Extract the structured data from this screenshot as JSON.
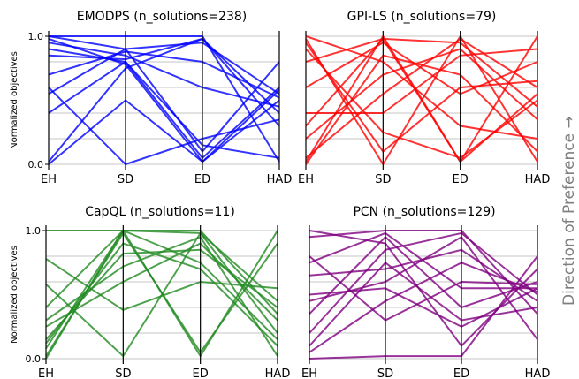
{
  "side_label": "Direction of Preference →",
  "axes_labels": [
    "EH",
    "SD",
    "ED",
    "HAD"
  ],
  "y_label": "Normalized objectives",
  "y_ticks": [
    "0.0",
    "1.0"
  ],
  "chart_data": [
    {
      "type": "parallel_coordinates",
      "title": "EMODPS (n_solutions=238)",
      "color": "#0000ff",
      "dimensions": [
        "EH",
        "SD",
        "ED",
        "HAD"
      ],
      "ylabel": "Normalized objectives",
      "ylim": [
        0,
        1
      ],
      "grid": "horizontal",
      "n_solutions": 238,
      "lines": [
        [
          1.0,
          1.0,
          1.0,
          0.02
        ],
        [
          0.02,
          0.75,
          0.98,
          0.4
        ],
        [
          0.98,
          0.78,
          0.02,
          0.5
        ],
        [
          0.6,
          0.0,
          0.2,
          0.35
        ],
        [
          0.55,
          0.9,
          0.95,
          0.55
        ],
        [
          0.95,
          0.85,
          0.6,
          0.45
        ],
        [
          0.4,
          0.8,
          0.05,
          0.6
        ],
        [
          1.0,
          0.9,
          0.1,
          0.8
        ],
        [
          0.85,
          0.82,
          0.98,
          0.3
        ],
        [
          0.0,
          0.5,
          0.02,
          0.58
        ],
        [
          0.7,
          0.88,
          0.8,
          0.52
        ],
        [
          0.9,
          0.8,
          0.15,
          0.05
        ]
      ]
    },
    {
      "type": "parallel_coordinates",
      "title": "GPI-LS (n_solutions=79)",
      "color": "#ff0000",
      "dimensions": [
        "EH",
        "SD",
        "ED",
        "HAD"
      ],
      "ylim": [
        0,
        1
      ],
      "grid": "horizontal",
      "n_solutions": 79,
      "lines": [
        [
          0.02,
          1.0,
          0.02,
          1.0
        ],
        [
          0.98,
          0.0,
          1.0,
          0.02
        ],
        [
          0.2,
          0.7,
          0.9,
          0.35
        ],
        [
          0.9,
          0.25,
          0.05,
          0.5
        ],
        [
          0.6,
          0.95,
          0.55,
          0.8
        ],
        [
          0.05,
          0.55,
          0.98,
          0.6
        ],
        [
          1.0,
          0.8,
          0.3,
          0.2
        ],
        [
          0.4,
          0.4,
          0.85,
          0.9
        ],
        [
          0.8,
          0.98,
          0.02,
          0.55
        ],
        [
          0.0,
          0.85,
          0.7,
          0.1
        ],
        [
          0.95,
          0.1,
          0.6,
          0.65
        ],
        [
          0.3,
          0.98,
          0.95,
          0.45
        ]
      ]
    },
    {
      "type": "parallel_coordinates",
      "title": "CapQL (n_solutions=11)",
      "color": "#228b22",
      "dimensions": [
        "EH",
        "SD",
        "ED",
        "HAD"
      ],
      "ylabel": "Normalized objectives",
      "ylim": [
        0,
        1
      ],
      "grid": "horizontal",
      "n_solutions": 11,
      "lines": [
        [
          1.0,
          1.0,
          1.0,
          0.35
        ],
        [
          0.0,
          1.0,
          0.02,
          1.0
        ],
        [
          0.58,
          0.02,
          0.98,
          0.45
        ],
        [
          0.12,
          0.9,
          0.7,
          0.1
        ],
        [
          0.3,
          0.72,
          0.95,
          0.02
        ],
        [
          0.78,
          0.38,
          0.6,
          0.55
        ],
        [
          0.08,
          1.0,
          0.98,
          0.2
        ],
        [
          0.15,
          0.82,
          0.85,
          0.4
        ],
        [
          0.02,
          0.98,
          0.05,
          0.9
        ],
        [
          0.4,
          1.0,
          0.75,
          0.15
        ],
        [
          0.25,
          0.6,
          0.9,
          0.3
        ]
      ]
    },
    {
      "type": "parallel_coordinates",
      "title": "PCN (n_solutions=129)",
      "color": "#800080",
      "dimensions": [
        "EH",
        "SD",
        "ED",
        "HAD"
      ],
      "ylim": [
        0,
        1
      ],
      "grid": "horizontal",
      "n_solutions": 129,
      "lines": [
        [
          0.0,
          0.02,
          0.02,
          0.8
        ],
        [
          0.95,
          1.0,
          1.0,
          0.35
        ],
        [
          0.5,
          0.55,
          0.25,
          0.55
        ],
        [
          0.2,
          0.85,
          0.98,
          0.5
        ],
        [
          0.8,
          0.3,
          0.6,
          0.58
        ],
        [
          0.35,
          0.95,
          0.4,
          0.6
        ],
        [
          0.65,
          0.7,
          0.85,
          0.45
        ],
        [
          0.05,
          0.45,
          0.75,
          0.52
        ],
        [
          1.0,
          0.9,
          0.1,
          0.7
        ],
        [
          0.45,
          0.6,
          0.95,
          0.15
        ],
        [
          0.75,
          0.98,
          0.55,
          0.55
        ],
        [
          0.1,
          0.75,
          0.3,
          0.4
        ]
      ]
    }
  ]
}
